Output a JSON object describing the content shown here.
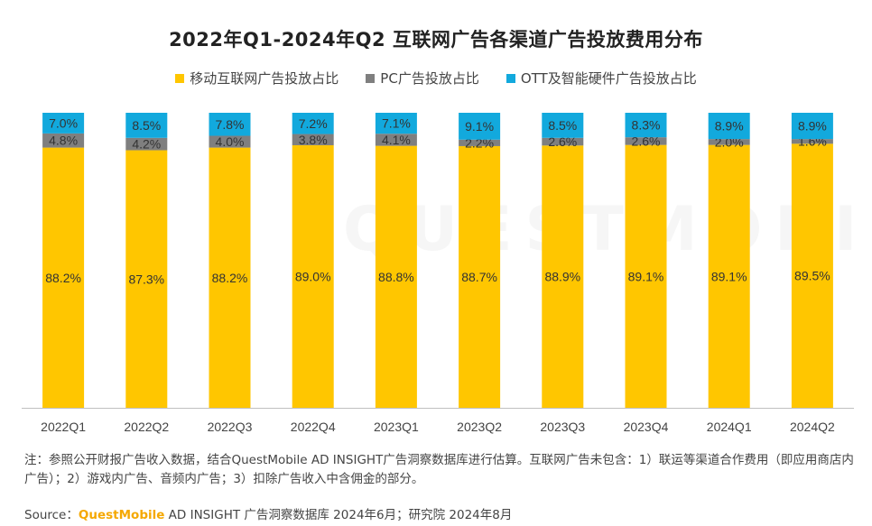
{
  "title": "2022年Q1-2024年Q2 互联网广告各渠道广告投放费用分布",
  "legend": {
    "mobile": "移动互联网广告投放占比",
    "pc": "PC广告投放占比",
    "ott": "OTT及智能硬件广告投放占比"
  },
  "colors": {
    "mobile": "#FFC600",
    "pc": "#7F7F7F",
    "ott": "#12A9DD"
  },
  "watermark": "QUESTMOBILE",
  "chart_data": {
    "type": "bar",
    "stacked": true,
    "categories": [
      "2022Q1",
      "2022Q2",
      "2022Q3",
      "2022Q4",
      "2023Q1",
      "2023Q2",
      "2023Q3",
      "2023Q4",
      "2024Q1",
      "2024Q2"
    ],
    "series": [
      {
        "name": "移动互联网广告投放占比",
        "values": [
          88.2,
          87.3,
          88.2,
          89.0,
          88.8,
          88.7,
          88.9,
          89.1,
          89.1,
          89.5
        ],
        "labels": [
          "88.2%",
          "87.3%",
          "88.2%",
          "89.0%",
          "88.8%",
          "88.7%",
          "88.9%",
          "89.1%",
          "89.1%",
          "89.5%"
        ]
      },
      {
        "name": "PC广告投放占比",
        "values": [
          4.8,
          4.2,
          4.0,
          3.8,
          4.1,
          2.2,
          2.6,
          2.6,
          2.0,
          1.6
        ],
        "labels": [
          "4.8%",
          "4.2%",
          "4.0%",
          "3.8%",
          "4.1%",
          "2.2%",
          "2.6%",
          "2.6%",
          "2.0%",
          "1.6%"
        ]
      },
      {
        "name": "OTT及智能硬件广告投放占比",
        "values": [
          7.0,
          8.5,
          7.8,
          7.2,
          7.1,
          9.1,
          8.5,
          8.3,
          8.9,
          8.9
        ],
        "labels": [
          "7.0%",
          "8.5%",
          "7.8%",
          "7.2%",
          "7.1%",
          "9.1%",
          "8.5%",
          "8.3%",
          "8.9%",
          "8.9%"
        ]
      }
    ],
    "ylim": [
      0,
      100
    ],
    "grid": false,
    "legend_position": "top"
  },
  "note": "注：参照公开财报广告收入数据，结合QuestMobile AD INSIGHT广告洞察数据库进行估算。互联网广告未包含：1）联运等渠道合作费用（即应用商店内广告）；2）游戏内广告、音频内广告；3）扣除广告收入中含佣金的部分。",
  "source": {
    "prefix": "Source：",
    "brand": "QuestMobile",
    "text": " AD INSIGHT 广告洞察数据库 2024年6月；研究院 2024年8月"
  }
}
